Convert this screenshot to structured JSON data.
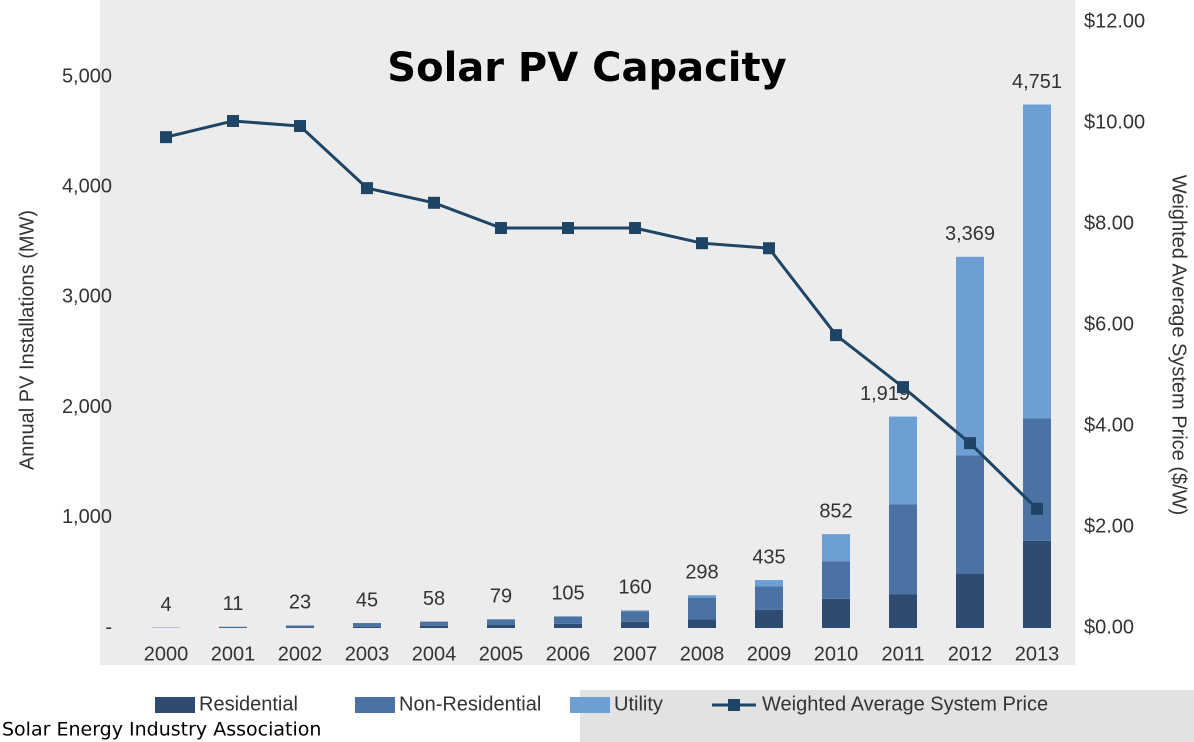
{
  "chart_data": {
    "type": "bar",
    "stacked": true,
    "title": "Solar PV Capacity",
    "ylabel": "Annual PV Installations (MW)",
    "y2label": "Weighted Average System Price ($/W)",
    "source": "Solar Energy Industry Association",
    "categories": [
      "2000",
      "2001",
      "2002",
      "2003",
      "2004",
      "2005",
      "2006",
      "2007",
      "2008",
      "2009",
      "2010",
      "2011",
      "2012",
      "2013"
    ],
    "series": [
      {
        "name": "Residential",
        "color": "#2e4c72",
        "values": [
          1,
          4,
          8,
          12,
          19,
          27,
          38,
          57,
          78,
          164,
          264,
          304,
          494,
          792
        ]
      },
      {
        "name": "Non-Residential",
        "color": "#4a73a3",
        "values": [
          3,
          7,
          15,
          33,
          39,
          51,
          67,
          93,
          198,
          213,
          342,
          817,
          1072,
          1112
        ]
      },
      {
        "name": "Utility",
        "color": "#6d9fd4",
        "values": [
          0,
          0,
          0,
          0,
          0,
          1,
          0,
          10,
          22,
          58,
          246,
          798,
          1803,
          2847
        ]
      },
      {
        "name": "Weighted Average System Price",
        "color": "#1f4566",
        "type": "line",
        "axis": "y2",
        "values": [
          9.72,
          10.04,
          9.94,
          8.71,
          8.42,
          7.92,
          7.92,
          7.92,
          7.62,
          7.52,
          5.8,
          4.77,
          3.66,
          2.36
        ]
      }
    ],
    "totals": [
      4,
      11,
      23,
      45,
      58,
      79,
      105,
      160,
      298,
      435,
      852,
      1919,
      3369,
      4751
    ],
    "total_labels": [
      "4",
      "11",
      "23",
      "45",
      "58",
      "79",
      "105",
      "160",
      "298",
      "435",
      "852",
      "1,919",
      "3,369",
      "4,751"
    ],
    "ylim": [
      0,
      5500
    ],
    "yticks": [
      {
        "value": 0,
        "label": "-"
      },
      {
        "value": 1000,
        "label": "1,000"
      },
      {
        "value": 2000,
        "label": "2,000"
      },
      {
        "value": 3000,
        "label": "3,000"
      },
      {
        "value": 4000,
        "label": "4,000"
      },
      {
        "value": 5000,
        "label": "5,000"
      }
    ],
    "y2lim": [
      0,
      12
    ],
    "y2ticks": [
      {
        "value": 0,
        "label": "$0.00"
      },
      {
        "value": 2,
        "label": "$2.00"
      },
      {
        "value": 4,
        "label": "$4.00"
      },
      {
        "value": 6,
        "label": "$6.00"
      },
      {
        "value": 8,
        "label": "$8.00"
      },
      {
        "value": 10,
        "label": "$10.00"
      },
      {
        "value": 12,
        "label": "$12.00"
      }
    ],
    "legend": "bottom"
  }
}
